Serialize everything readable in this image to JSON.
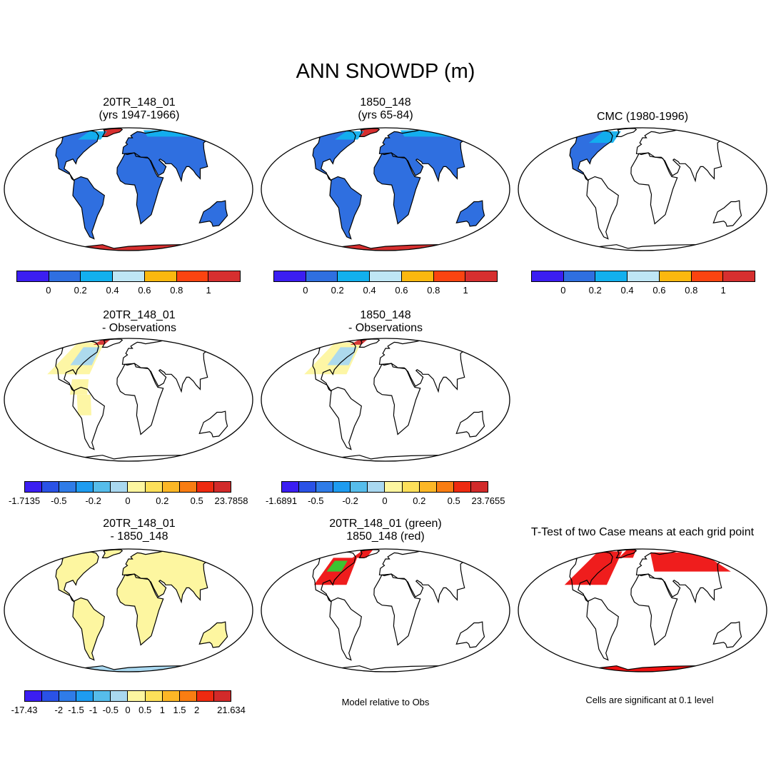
{
  "figure": {
    "title": "ANN SNOWDP (m)"
  },
  "panels": {
    "p1": {
      "line1": "20TR_148_01",
      "line2": "(yrs 1947-1966)"
    },
    "p2": {
      "line1": "1850_148",
      "line2": "(yrs 65-84)"
    },
    "p3": {
      "line1": "CMC (1980-1996)"
    },
    "p4": {
      "line1": "20TR_148_01",
      "line2": "- Observations"
    },
    "p5": {
      "line1": "1850_148",
      "line2": "- Observations"
    },
    "p6": {
      "line1": "20TR_148_01",
      "line2": "- 1850_148"
    },
    "p7": {
      "line1": "20TR_148_01 (green)",
      "line2": "1850_148 (red)"
    },
    "p8": {
      "line1": "T-Test of two Case means at each grid point"
    }
  },
  "notes": {
    "model_rel": "Model relative to Obs",
    "significance": "Cells are significant at 0.1 level"
  },
  "colorbars": {
    "abs": {
      "colors": [
        "#3b1ef2",
        "#2f6fe0",
        "#12b0ee",
        "#bfe6f5",
        "#fbb80f",
        "#fb4410",
        "#d62f2f"
      ],
      "labels": [
        "0",
        "0.2",
        "0.4",
        "0.6",
        "0.8",
        "1"
      ]
    },
    "diff1": {
      "colors": [
        "#3b1ef2",
        "#2a52e6",
        "#2f7ce8",
        "#1e9cf0",
        "#56bdeb",
        "#a9d8f0",
        "#fdf6a0",
        "#fde05a",
        "#fcb726",
        "#f97d12",
        "#ee2a10",
        "#d22a2a"
      ],
      "labels": [
        "-1.7135",
        "-0.5",
        "-0.2",
        "0",
        "0.2",
        "0.5",
        "23.7858"
      ]
    },
    "diff2": {
      "colors": [
        "#3b1ef2",
        "#2a52e6",
        "#2f7ce8",
        "#1e9cf0",
        "#56bdeb",
        "#a9d8f0",
        "#fdf6a0",
        "#fde05a",
        "#fcb726",
        "#f97d12",
        "#ee2a10",
        "#d22a2a"
      ],
      "labels": [
        "-1.6891",
        "-0.5",
        "-0.2",
        "0",
        "0.2",
        "0.5",
        "23.7655"
      ]
    },
    "diff3": {
      "colors": [
        "#3b1ef2",
        "#2a52e6",
        "#2f7ce8",
        "#1e9cf0",
        "#56bdeb",
        "#a9d8f0",
        "#fdf6a0",
        "#fde05a",
        "#fcb726",
        "#f97d12",
        "#ee2a10",
        "#d22a2a"
      ],
      "labels": [
        "-17.43",
        "-2",
        "-1.5",
        "-1",
        "-0.5",
        "0",
        "0.5",
        "1",
        "1.5",
        "2",
        "21.634"
      ]
    }
  },
  "colors": {
    "land_snow": "#2f6fe0",
    "ice_sheet": "#d62f2f",
    "high_snow": "#12b0ee",
    "diff_pos_small": "#fdf6a0",
    "diff_neg_small": "#a9d8f0",
    "sig_red": "#ee1111",
    "case_green": "#33cc33"
  }
}
